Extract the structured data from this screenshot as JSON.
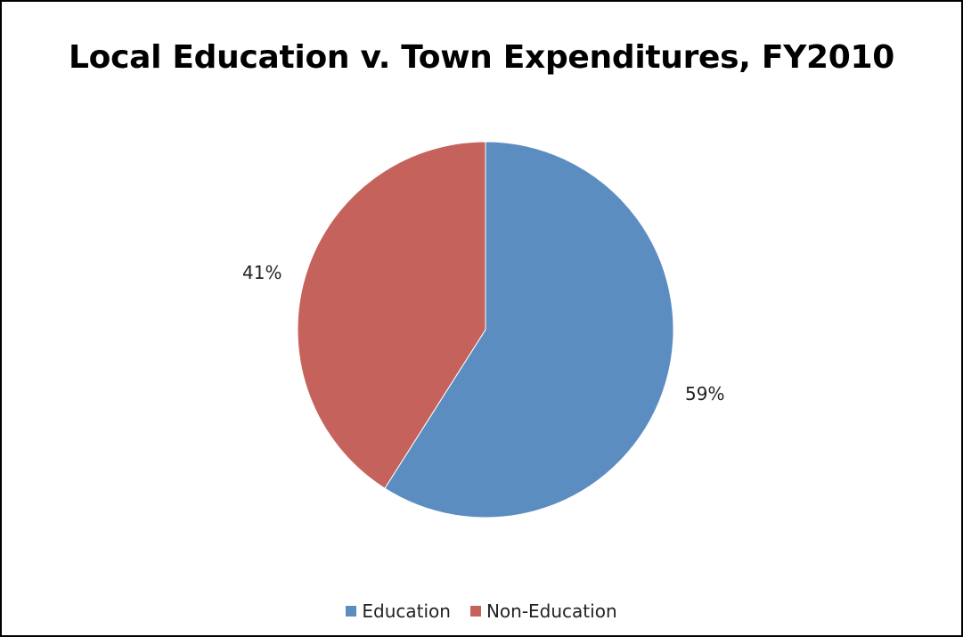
{
  "chart_data": {
    "type": "pie",
    "title": "Local Education v. Town Expenditures, FY2010",
    "categories": [
      "Education",
      "Non-Education"
    ],
    "values": [
      59,
      41
    ],
    "labels": [
      "59%",
      "41%"
    ],
    "colors": [
      "#5B8DC1",
      "#C5625C"
    ],
    "legend_position": "bottom"
  }
}
